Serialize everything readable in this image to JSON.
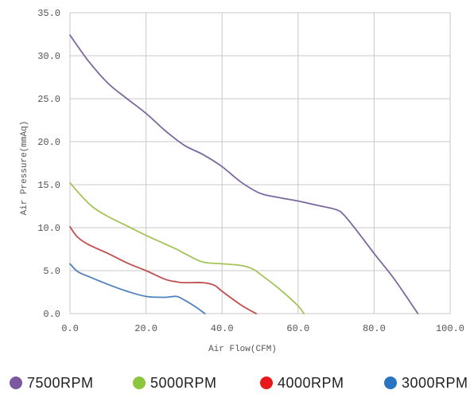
{
  "chart_data": {
    "type": "line",
    "xlabel": "Air Flow(CFM)",
    "ylabel": "Air Pressure(mmAq)",
    "xlim": [
      0,
      100
    ],
    "ylim": [
      0,
      35
    ],
    "x_ticks": [
      "0.0",
      "20.0",
      "40.0",
      "60.0",
      "80.0",
      "100.0"
    ],
    "y_ticks": [
      "0.0",
      "5.0",
      "10.0",
      "15.0",
      "20.0",
      "25.0",
      "30.0",
      "35.0"
    ],
    "grid": true,
    "legend_position": "bottom",
    "series": [
      {
        "name": "7500RPM",
        "color": "#7b68a0",
        "x": [
          0,
          5,
          10,
          15,
          20,
          25,
          30,
          35,
          40,
          45,
          50,
          55,
          60,
          65,
          70,
          72,
          75,
          80,
          85,
          90,
          91.5
        ],
        "y": [
          32.4,
          29.3,
          26.8,
          25.0,
          23.3,
          21.3,
          19.6,
          18.5,
          17.1,
          15.3,
          14.0,
          13.5,
          13.1,
          12.6,
          12.1,
          11.5,
          9.9,
          7.0,
          4.2,
          1.0,
          0
        ]
      },
      {
        "name": "5000RPM",
        "color": "#a2c45a",
        "x": [
          0,
          3,
          6,
          10,
          15,
          20,
          25,
          28,
          31,
          35,
          40,
          45,
          48,
          50,
          55,
          60,
          61.5
        ],
        "y": [
          15.2,
          13.7,
          12.4,
          11.3,
          10.2,
          9.1,
          8.1,
          7.5,
          6.8,
          6.0,
          5.8,
          5.6,
          5.2,
          4.6,
          2.9,
          0.9,
          0
        ]
      },
      {
        "name": "4000RPM",
        "color": "#c0504d",
        "x": [
          0,
          2,
          5,
          10,
          15,
          20,
          25,
          28,
          30,
          35,
          38,
          40,
          45,
          49
        ],
        "y": [
          10.1,
          8.9,
          8.0,
          7.0,
          5.9,
          5.0,
          4.0,
          3.7,
          3.6,
          3.6,
          3.3,
          2.6,
          1.0,
          0
        ]
      },
      {
        "name": "3000RPM",
        "color": "#4f81bd",
        "x": [
          0,
          2,
          5,
          10,
          15,
          20,
          25,
          28,
          30,
          33,
          35.5
        ],
        "y": [
          5.8,
          4.9,
          4.3,
          3.4,
          2.6,
          2.0,
          1.9,
          2.0,
          1.6,
          0.8,
          0
        ]
      }
    ]
  },
  "legend": {
    "items": [
      {
        "label": "7500RPM",
        "color": "#7b58a0"
      },
      {
        "label": "5000RPM",
        "color": "#8cc63f"
      },
      {
        "label": "4000RPM",
        "color": "#e8191b"
      },
      {
        "label": "3000RPM",
        "color": "#2874c0"
      }
    ]
  }
}
